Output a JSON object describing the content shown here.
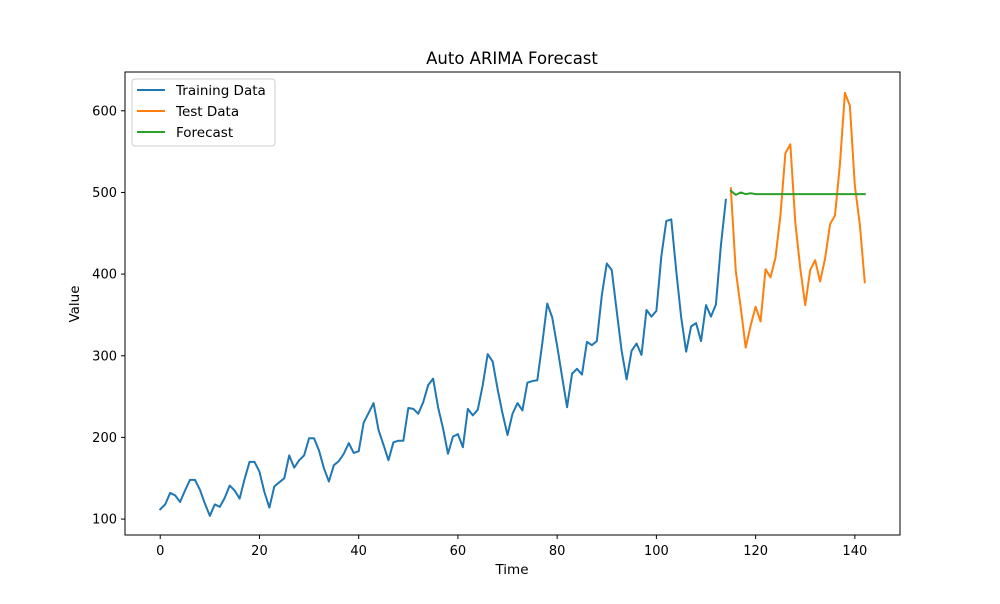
{
  "chart_data": {
    "type": "line",
    "title": "Auto ARIMA Forecast",
    "xlabel": "Time",
    "ylabel": "Value",
    "xlim": [
      -7.1,
      149.1
    ],
    "ylim": [
      80.5,
      647.5
    ],
    "xticks": [
      0,
      20,
      40,
      60,
      80,
      100,
      120,
      140
    ],
    "yticks": [
      100,
      200,
      300,
      400,
      500,
      600
    ],
    "grid": false,
    "legend_position": "top-left",
    "series": [
      {
        "name": "Training Data",
        "color": "#1f77b4",
        "x_start": 0,
        "values": [
          112,
          118,
          132,
          129,
          121,
          135,
          148,
          148,
          136,
          119,
          104,
          118,
          115,
          126,
          141,
          135,
          125,
          149,
          170,
          170,
          158,
          133,
          114,
          140,
          145,
          150,
          178,
          163,
          172,
          178,
          199,
          199,
          184,
          162,
          146,
          166,
          171,
          180,
          193,
          181,
          183,
          218,
          230,
          242,
          209,
          191,
          172,
          194,
          196,
          196,
          236,
          235,
          229,
          243,
          264,
          272,
          237,
          211,
          180,
          201,
          204,
          188,
          235,
          227,
          234,
          264,
          302,
          293,
          259,
          229,
          203,
          229,
          242,
          233,
          267,
          269,
          270,
          315,
          364,
          347,
          312,
          274,
          237,
          278,
          284,
          277,
          317,
          313,
          318,
          374,
          413,
          405,
          355,
          306,
          271,
          306,
          315,
          301,
          356,
          348,
          355,
          422,
          465,
          467,
          404,
          347,
          305,
          336,
          340,
          318,
          362,
          348,
          363,
          435,
          491
        ]
      },
      {
        "name": "Test Data",
        "color": "#ff7f0e",
        "x_start": 115,
        "values": [
          505,
          404,
          359,
          310,
          337,
          360,
          342,
          406,
          396,
          420,
          472,
          548,
          559,
          463,
          407,
          362,
          405,
          417,
          391,
          419,
          461,
          472,
          535,
          622,
          606,
          508,
          461,
          390
        ]
      },
      {
        "name": "Forecast",
        "color": "#2ca02c",
        "x_start": 115,
        "values": [
          502,
          497,
          500,
          498,
          499,
          498,
          498,
          498,
          498,
          498,
          498,
          498,
          498,
          498,
          498,
          498,
          498,
          498,
          498,
          498,
          498,
          498,
          498,
          498,
          498,
          498,
          498,
          498
        ]
      }
    ]
  }
}
